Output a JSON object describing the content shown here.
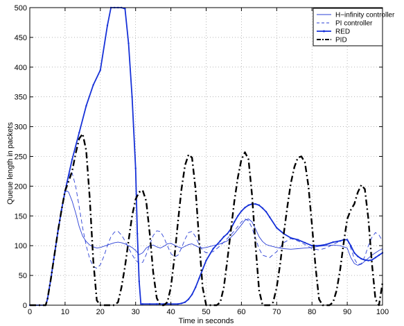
{
  "chart_data": {
    "type": "line",
    "xlabel": "Time in seconds",
    "ylabel": "Queue length in packets",
    "xlim": [
      0,
      100
    ],
    "ylim": [
      0,
      500
    ],
    "xticks": [
      0,
      10,
      20,
      30,
      40,
      50,
      60,
      70,
      80,
      90,
      100
    ],
    "yticks": [
      0,
      50,
      100,
      150,
      200,
      250,
      300,
      350,
      400,
      450,
      500
    ],
    "grid": true,
    "legend_position": "top-right",
    "series": [
      {
        "name": "H−infinity controller",
        "color": "#2a3fd6",
        "style": "solid",
        "width": 0.9,
        "marker": "none",
        "x": [
          0,
          4.5,
          5,
          6,
          7,
          8,
          9,
          10,
          10.5,
          11,
          12,
          13,
          14,
          15,
          16,
          17,
          18,
          19,
          20,
          21,
          22,
          23,
          24,
          25,
          26,
          27,
          28,
          29,
          30,
          31,
          32,
          33,
          34,
          35,
          36,
          37,
          38,
          39,
          40,
          41,
          42,
          43,
          44,
          45,
          46,
          47,
          48,
          49,
          50,
          52,
          54,
          56,
          58,
          60,
          61,
          62,
          63,
          64,
          65,
          66,
          67,
          68,
          70,
          72,
          74,
          76,
          78,
          80,
          82,
          84,
          86,
          88,
          90,
          91,
          92,
          93,
          94,
          95,
          96,
          97,
          98,
          99,
          100
        ],
        "y": [
          0,
          0,
          10,
          45,
          85,
          125,
          160,
          190,
          192,
          190,
          175,
          155,
          132,
          116,
          107,
          101,
          98,
          96,
          97,
          99,
          101,
          103,
          105,
          106,
          105,
          103,
          100,
          97,
          92,
          85,
          88,
          96,
          100,
          101,
          98,
          96,
          99,
          103,
          104,
          101,
          98,
          96,
          99,
          102,
          103,
          100,
          97,
          96,
          97,
          100,
          103,
          108,
          120,
          135,
          143,
          145,
          140,
          128,
          115,
          107,
          102,
          100,
          97,
          95,
          94,
          95,
          96,
          97,
          99,
          100,
          101,
          100,
          96,
          80,
          70,
          67,
          69,
          74,
          79,
          84,
          88,
          92,
          95
        ]
      },
      {
        "name": "PI controller",
        "color": "#2a3fd6",
        "style": "dashed",
        "width": 0.9,
        "marker": "none",
        "x": [
          0,
          4.5,
          5,
          6,
          7,
          8,
          9,
          10,
          11,
          11.5,
          12,
          13,
          14,
          15,
          16,
          17,
          18,
          19,
          20,
          21,
          22,
          23,
          24,
          25,
          26,
          27,
          28,
          29,
          30,
          31,
          32,
          33,
          34,
          35,
          36,
          37,
          38,
          39,
          40,
          41,
          42,
          43,
          44,
          45,
          46,
          47,
          48,
          49,
          50,
          52,
          54,
          56,
          58,
          60,
          61,
          62,
          63,
          64,
          65,
          66,
          68,
          70,
          72,
          74,
          76,
          78,
          80,
          82,
          84,
          86,
          88,
          90,
          91,
          92,
          93,
          94,
          95,
          96,
          97,
          98,
          99,
          100
        ],
        "y": [
          0,
          0,
          10,
          45,
          85,
          125,
          160,
          190,
          215,
          224,
          222,
          200,
          165,
          130,
          100,
          78,
          65,
          62,
          68,
          82,
          100,
          115,
          123,
          124,
          118,
          108,
          96,
          85,
          76,
          70,
          72,
          85,
          102,
          117,
          125,
          124,
          114,
          100,
          87,
          81,
          84,
          96,
          111,
          122,
          124,
          115,
          102,
          92,
          88,
          90,
          100,
          112,
          125,
          140,
          145,
          142,
          130,
          112,
          95,
          84,
          80,
          90,
          105,
          112,
          108,
          102,
          95,
          93,
          96,
          102,
          108,
          110,
          96,
          78,
          68,
          70,
          82,
          100,
          114,
          122,
          118,
          108
        ]
      },
      {
        "name": "RED",
        "color": "#1530d8",
        "style": "solid",
        "width": 1.8,
        "marker": "point",
        "x": [
          0,
          4.5,
          5,
          6,
          7,
          8,
          9,
          10,
          12,
          14,
          16,
          18,
          20,
          22,
          23,
          24,
          25,
          26,
          27,
          28,
          29,
          30,
          30.5,
          31,
          31.5,
          32,
          34,
          36,
          38,
          40,
          42,
          43,
          44,
          45,
          46,
          47,
          48,
          50,
          52,
          54,
          55,
          56,
          57,
          58,
          59,
          60,
          61,
          62,
          63,
          64,
          65,
          66,
          67,
          68,
          70,
          72,
          74,
          76,
          78,
          80,
          82,
          84,
          86,
          88,
          89,
          90,
          91,
          92,
          93,
          94,
          95,
          96,
          97,
          98,
          99,
          100
        ],
        "y": [
          0,
          0,
          10,
          45,
          85,
          125,
          160,
          192,
          245,
          290,
          335,
          370,
          395,
          470,
          500,
          500,
          500,
          500,
          498,
          440,
          350,
          230,
          120,
          40,
          2,
          2,
          2,
          2,
          2,
          2,
          2,
          3,
          5,
          10,
          18,
          30,
          45,
          75,
          95,
          108,
          115,
          120,
          128,
          140,
          150,
          158,
          164,
          168,
          170,
          170,
          168,
          163,
          157,
          148,
          130,
          120,
          113,
          110,
          105,
          100,
          100,
          102,
          106,
          108,
          110,
          110,
          100,
          88,
          82,
          78,
          76,
          75,
          76,
          80,
          84,
          88
        ]
      },
      {
        "name": "PID",
        "color": "#000000",
        "style": "dashdot",
        "width": 2.4,
        "marker": "none",
        "x": [
          0,
          4.5,
          5,
          6,
          7,
          8,
          9,
          10,
          11,
          12,
          13,
          14,
          15,
          16,
          17,
          18,
          19,
          20,
          21,
          22,
          23,
          24,
          25,
          26,
          27,
          28,
          29,
          30,
          31,
          32,
          33,
          34,
          35,
          36,
          37,
          38,
          39,
          40,
          41,
          42,
          43,
          44,
          45,
          46,
          47,
          48,
          49,
          50,
          51,
          52,
          53,
          54,
          55,
          56,
          57,
          58,
          59,
          60,
          61,
          62,
          63,
          64,
          65,
          66,
          67,
          68,
          69,
          70,
          71,
          72,
          73,
          74,
          75,
          76,
          77,
          78,
          79,
          80,
          81,
          82,
          83,
          84,
          85,
          86,
          87,
          88,
          89,
          90,
          91,
          92,
          93,
          94,
          95,
          96,
          97,
          98,
          99,
          100
        ],
        "y": [
          0,
          0,
          10,
          45,
          85,
          125,
          160,
          192,
          208,
          225,
          255,
          280,
          288,
          260,
          180,
          75,
          8,
          0,
          0,
          0,
          0,
          0,
          5,
          30,
          65,
          108,
          150,
          178,
          190,
          193,
          175,
          120,
          55,
          12,
          0,
          0,
          5,
          30,
          80,
          140,
          195,
          235,
          253,
          248,
          195,
          110,
          30,
          0,
          0,
          0,
          0,
          5,
          30,
          75,
          125,
          175,
          215,
          245,
          257,
          245,
          185,
          100,
          25,
          0,
          0,
          0,
          5,
          30,
          70,
          120,
          165,
          205,
          232,
          248,
          250,
          240,
          200,
          135,
          65,
          10,
          0,
          0,
          0,
          5,
          25,
          60,
          105,
          145,
          160,
          170,
          190,
          202,
          195,
          145,
          70,
          10,
          0,
          38
        ]
      }
    ]
  }
}
